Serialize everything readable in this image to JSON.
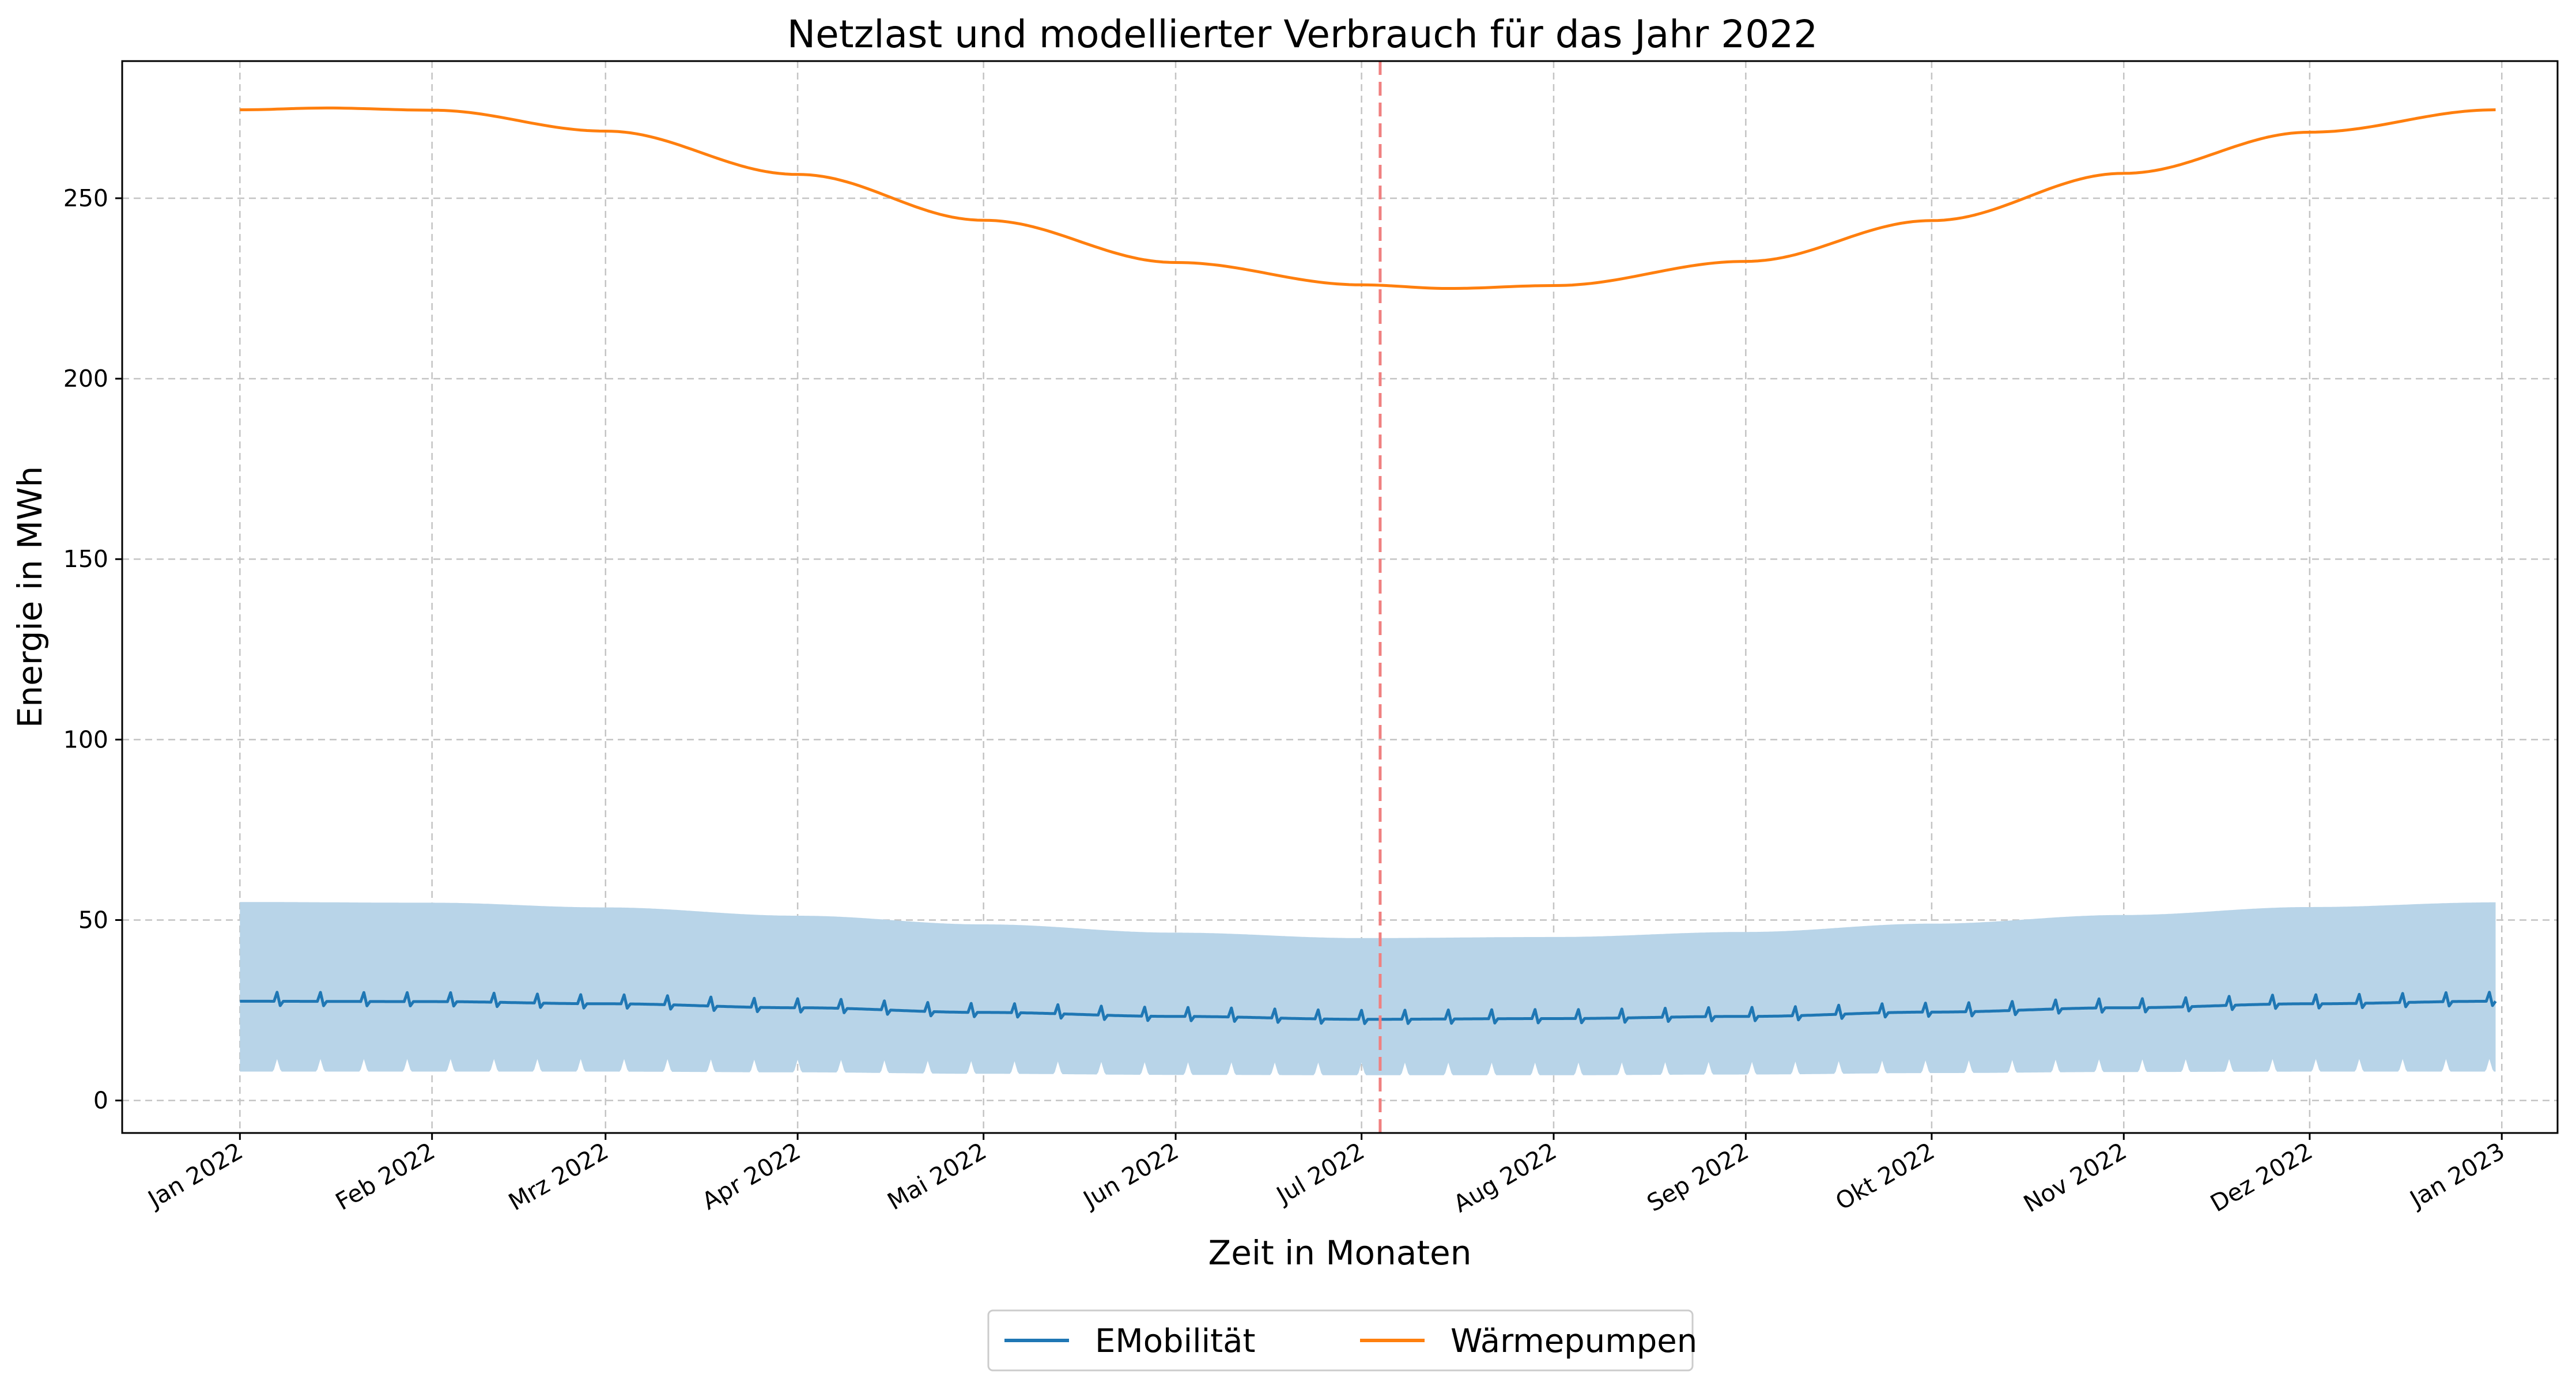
{
  "chart_data": {
    "type": "line",
    "title": "Netzlast und modellierter Verbrauch für das Jahr 2022",
    "xlabel": "Zeit in Monaten",
    "ylabel": "Energie in MWh",
    "x_domain": [
      "2022-01-01",
      "2023-01-10"
    ],
    "xlim": [
      "2021-12-13",
      "2023-01-10"
    ],
    "ylim": [
      -9,
      288
    ],
    "x_ticks": [
      {
        "date": "2022-01-01",
        "label": "Jan 2022"
      },
      {
        "date": "2022-02-01",
        "label": "Feb 2022"
      },
      {
        "date": "2022-03-01",
        "label": "Mrz 2022"
      },
      {
        "date": "2022-04-01",
        "label": "Apr 2022"
      },
      {
        "date": "2022-05-01",
        "label": "Mai 2022"
      },
      {
        "date": "2022-06-01",
        "label": "Jun 2022"
      },
      {
        "date": "2022-07-01",
        "label": "Jul 2022"
      },
      {
        "date": "2022-08-01",
        "label": "Aug 2022"
      },
      {
        "date": "2022-09-01",
        "label": "Sep 2022"
      },
      {
        "date": "2022-10-01",
        "label": "Okt 2022"
      },
      {
        "date": "2022-11-01",
        "label": "Nov 2022"
      },
      {
        "date": "2022-12-01",
        "label": "Dez 2022"
      },
      {
        "date": "2023-01-01",
        "label": "Jan 2023"
      }
    ],
    "y_ticks": [
      0,
      50,
      100,
      150,
      200,
      250
    ],
    "grid": true,
    "vertical_marker": {
      "date": "2022-07-04",
      "color": "#f08080",
      "style": "dashed"
    },
    "band": {
      "color": "#b8d4e8",
      "dates": [
        "2022-01-01",
        "2022-02-01",
        "2022-03-01",
        "2022-04-01",
        "2022-05-01",
        "2022-06-01",
        "2022-07-01",
        "2022-08-01",
        "2022-09-01",
        "2022-10-01",
        "2022-11-01",
        "2022-12-01",
        "2022-12-31"
      ],
      "upper": [
        55,
        54.8,
        53.5,
        51.2,
        48.8,
        46.5,
        45,
        45.3,
        46.7,
        49,
        51.4,
        53.6,
        54.9
      ],
      "lower_base": [
        8,
        8,
        8,
        7.8,
        7.4,
        7.1,
        7,
        7,
        7.2,
        7.6,
        7.9,
        8,
        8
      ],
      "lower_spike": 3.5,
      "spike_period_days": 7
    },
    "series": [
      {
        "name": "EMobilität",
        "color": "#1f77b4",
        "dates": [
          "2022-01-01",
          "2022-02-01",
          "2022-03-01",
          "2022-04-01",
          "2022-05-01",
          "2022-06-01",
          "2022-07-01",
          "2022-08-01",
          "2022-09-01",
          "2022-10-01",
          "2022-11-01",
          "2022-12-01",
          "2022-12-31"
        ],
        "values": [
          27.5,
          27.4,
          26.8,
          25.7,
          24.4,
          23.3,
          22.5,
          22.7,
          23.3,
          24.5,
          25.7,
          26.8,
          27.5
        ],
        "weekly_spike": 2.5,
        "weekly_dip": -1.2
      },
      {
        "name": "Wärmepumpen",
        "color": "#ff7f0e",
        "dates": [
          "2022-01-01",
          "2022-01-15",
          "2022-02-01",
          "2022-03-01",
          "2022-04-01",
          "2022-05-01",
          "2022-06-01",
          "2022-07-01",
          "2022-07-15",
          "2022-08-01",
          "2022-09-01",
          "2022-10-01",
          "2022-11-01",
          "2022-12-01",
          "2022-12-31"
        ],
        "values": [
          274.5,
          275,
          274.4,
          268.6,
          256.6,
          243.9,
          232.2,
          226,
          225,
          225.8,
          232.5,
          243.8,
          256.9,
          268.3,
          274.5
        ]
      }
    ],
    "legend": {
      "placement": "bottom-center",
      "entries": [
        {
          "label": "EMobilität",
          "color": "#1f77b4"
        },
        {
          "label": "Wärmepumpen",
          "color": "#ff7f0e"
        }
      ]
    }
  }
}
